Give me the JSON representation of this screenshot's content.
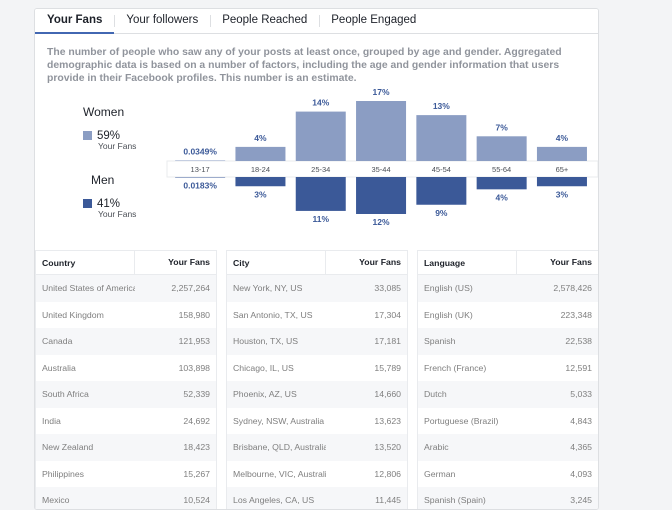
{
  "tabs": [
    "Your Fans",
    "Your followers",
    "People Reached",
    "People Engaged"
  ],
  "description": "The number of people who saw any of your posts at least once, grouped by age and gender. Aggregated demographic data is based on a number of factors, including the age and gender information that users provide in their Facebook profiles. This number is an estimate.",
  "legend": {
    "women": {
      "title": "Women",
      "pct": "59%",
      "sub": "Your Fans",
      "color": "#8b9dc3"
    },
    "men": {
      "title": "Men",
      "pct": "41%",
      "sub": "Your Fans",
      "color": "#3b5998"
    }
  },
  "chart_data": {
    "type": "bar",
    "categories": [
      "13-17",
      "18-24",
      "25-34",
      "35-44",
      "45-54",
      "55-64",
      "65+"
    ],
    "series": [
      {
        "name": "Women",
        "values": [
          0.0349,
          4,
          14,
          17,
          13,
          7,
          4
        ],
        "labels": [
          "0.0349%",
          "4%",
          "14%",
          "17%",
          "13%",
          "7%",
          "4%"
        ],
        "color": "#8b9dc3"
      },
      {
        "name": "Men",
        "values": [
          0.0183,
          3,
          11,
          12,
          9,
          4,
          3
        ],
        "labels": [
          "0.0183%",
          "3%",
          "11%",
          "12%",
          "9%",
          "4%",
          "3%"
        ],
        "color": "#3b5998"
      }
    ]
  },
  "tables": [
    {
      "header": [
        "Country",
        "Your Fans"
      ],
      "rows": [
        [
          "United States of America",
          "2,257,264"
        ],
        [
          "United Kingdom",
          "158,980"
        ],
        [
          "Canada",
          "121,953"
        ],
        [
          "Australia",
          "103,898"
        ],
        [
          "South Africa",
          "52,339"
        ],
        [
          "India",
          "24,692"
        ],
        [
          "New Zealand",
          "18,423"
        ],
        [
          "Philippines",
          "15,267"
        ],
        [
          "Mexico",
          "10,524"
        ]
      ]
    },
    {
      "header": [
        "City",
        "Your Fans"
      ],
      "rows": [
        [
          "New York, NY, US",
          "33,085"
        ],
        [
          "San Antonio, TX, US",
          "17,304"
        ],
        [
          "Houston, TX, US",
          "17,181"
        ],
        [
          "Chicago, IL, US",
          "15,789"
        ],
        [
          "Phoenix, AZ, US",
          "14,660"
        ],
        [
          "Sydney, NSW, Australia",
          "13,623"
        ],
        [
          "Brisbane, QLD, Australia",
          "13,520"
        ],
        [
          "Melbourne, VIC, Australia",
          "12,806"
        ],
        [
          "Los Angeles, CA, US",
          "11,445"
        ]
      ]
    },
    {
      "header": [
        "Language",
        "Your Fans"
      ],
      "rows": [
        [
          "English (US)",
          "2,578,426"
        ],
        [
          "English (UK)",
          "223,348"
        ],
        [
          "Spanish",
          "22,538"
        ],
        [
          "French (France)",
          "12,591"
        ],
        [
          "Dutch",
          "5,033"
        ],
        [
          "Portuguese (Brazil)",
          "4,843"
        ],
        [
          "Arabic",
          "4,365"
        ],
        [
          "German",
          "4,093"
        ],
        [
          "Spanish (Spain)",
          "3,245"
        ]
      ]
    }
  ]
}
